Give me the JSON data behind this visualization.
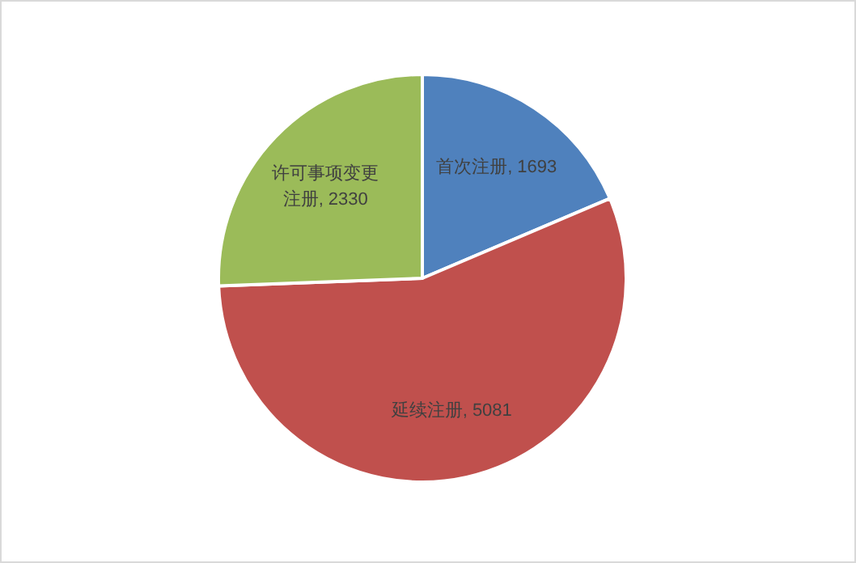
{
  "chart_data": {
    "type": "pie",
    "categories": [
      "首次注册",
      "延续注册",
      "许可事项变更注册"
    ],
    "values": [
      1693,
      5081,
      2330
    ],
    "colors": [
      "#4f81bd",
      "#c0504d",
      "#9bbb59"
    ],
    "value_labels": [
      ", 1693",
      ", 5081",
      ", 2330"
    ]
  }
}
